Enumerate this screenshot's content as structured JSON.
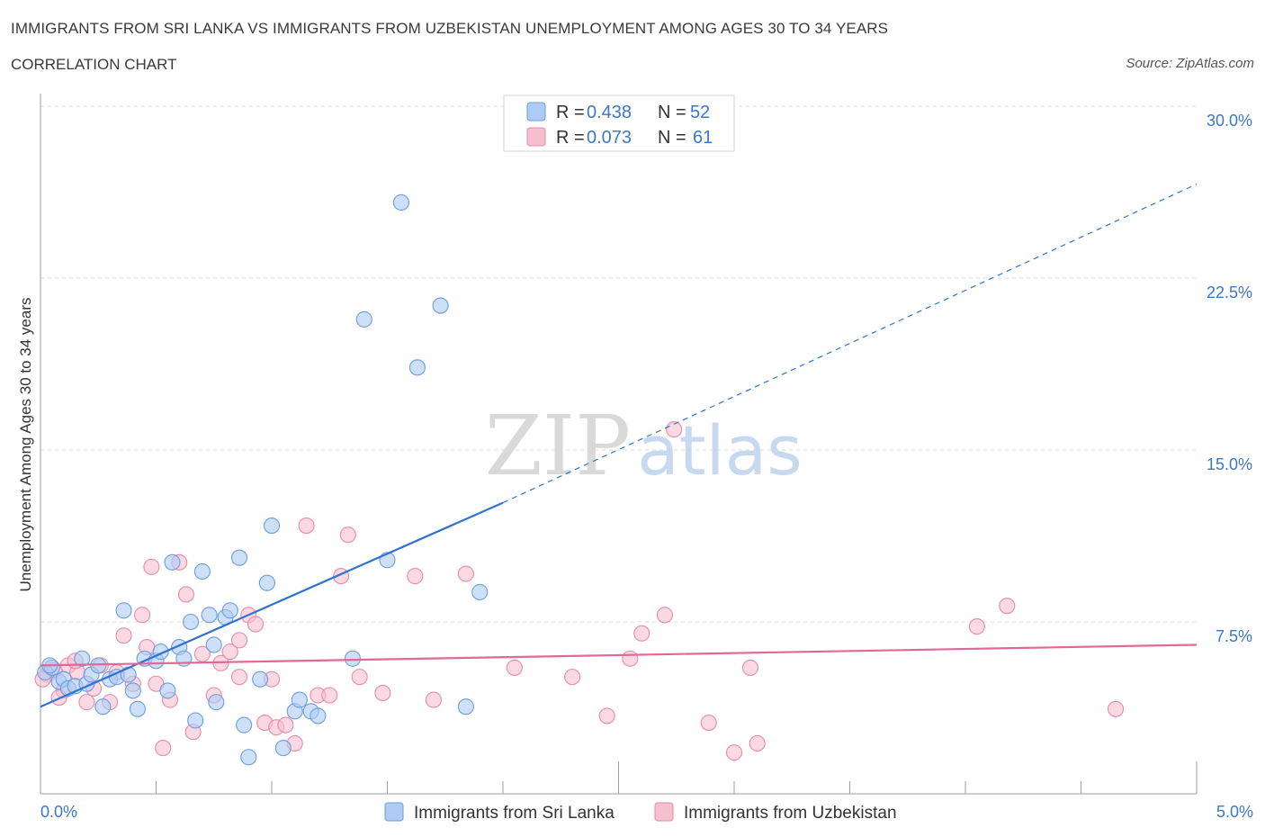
{
  "header": {
    "title": "IMMIGRANTS FROM SRI LANKA VS IMMIGRANTS FROM UZBEKISTAN UNEMPLOYMENT AMONG AGES 30 TO 34 YEARS",
    "subtitle": "CORRELATION CHART",
    "source": "Source: ZipAtlas.com"
  },
  "watermark": {
    "zip": "ZIP",
    "atlas": "atlas"
  },
  "colors": {
    "blue_fill": "#aeccf3",
    "blue_stroke": "#6a9ee0",
    "blue_line": "#2f74d0",
    "pink_fill": "#f6bfd0",
    "pink_stroke": "#e88aa8",
    "pink_line": "#e0699a",
    "axis_text_blue": "#3b78c8",
    "grid": "#d9d9d9"
  },
  "chart_data": {
    "type": "scatter",
    "title": "IMMIGRANTS FROM SRI LANKA VS IMMIGRANTS FROM UZBEKISTAN UNEMPLOYMENT AMONG AGES 30 TO 34 YEARS",
    "xlabel": "",
    "ylabel": "Unemployment Among Ages 30 to 34 years",
    "xlim": [
      0,
      5
    ],
    "ylim": [
      0,
      30
    ],
    "x_tick_labels": [
      "0.0%",
      "5.0%"
    ],
    "y_ticks": [
      7.5,
      15,
      22.5,
      30
    ],
    "y_tick_labels": [
      "7.5%",
      "15.0%",
      "22.5%",
      "30.0%"
    ],
    "grid": true,
    "legend_position": "top-center",
    "series": [
      {
        "name": "Immigrants from Sri Lanka",
        "color": "blue",
        "R": "0.438",
        "N": "52",
        "trend": {
          "x0": 0,
          "y0": 3.8,
          "x1": 2.0,
          "y1": 12.7,
          "dash_to_x": 5.0,
          "dash_to_y": 26.6
        },
        "points": [
          [
            0.02,
            5.3
          ],
          [
            0.05,
            5.5
          ],
          [
            0.08,
            4.9
          ],
          [
            0.1,
            5.0
          ],
          [
            0.12,
            4.6
          ],
          [
            0.15,
            4.7
          ],
          [
            0.18,
            5.9
          ],
          [
            0.2,
            4.8
          ],
          [
            0.22,
            5.2
          ],
          [
            0.25,
            5.6
          ],
          [
            0.27,
            3.8
          ],
          [
            0.3,
            5.0
          ],
          [
            0.33,
            5.1
          ],
          [
            0.36,
            8.0
          ],
          [
            0.38,
            5.2
          ],
          [
            0.4,
            4.5
          ],
          [
            0.42,
            3.7
          ],
          [
            0.45,
            5.9
          ],
          [
            0.5,
            5.8
          ],
          [
            0.52,
            6.2
          ],
          [
            0.55,
            4.5
          ],
          [
            0.57,
            10.1
          ],
          [
            0.6,
            6.4
          ],
          [
            0.62,
            5.9
          ],
          [
            0.65,
            7.5
          ],
          [
            0.67,
            3.2
          ],
          [
            0.7,
            9.7
          ],
          [
            0.73,
            7.8
          ],
          [
            0.75,
            6.5
          ],
          [
            0.76,
            4.0
          ],
          [
            0.8,
            7.7
          ],
          [
            0.82,
            8.0
          ],
          [
            0.86,
            10.3
          ],
          [
            0.88,
            3.0
          ],
          [
            0.9,
            1.6
          ],
          [
            0.95,
            5.0
          ],
          [
            0.98,
            9.2
          ],
          [
            1.0,
            11.7
          ],
          [
            1.05,
            2.0
          ],
          [
            1.1,
            3.6
          ],
          [
            1.12,
            4.1
          ],
          [
            1.17,
            3.6
          ],
          [
            1.2,
            3.4
          ],
          [
            1.35,
            5.9
          ],
          [
            1.4,
            20.7
          ],
          [
            1.5,
            10.2
          ],
          [
            1.56,
            25.8
          ],
          [
            1.63,
            18.6
          ],
          [
            1.73,
            21.3
          ],
          [
            1.84,
            3.8
          ],
          [
            1.9,
            8.8
          ],
          [
            0.04,
            5.6
          ]
        ]
      },
      {
        "name": "Immigrants from Uzbekistan",
        "color": "pink",
        "R": "0.073",
        "N": "61",
        "trend": {
          "x0": 0,
          "y0": 5.6,
          "x1": 5.0,
          "y1": 6.5
        },
        "points": [
          [
            0.03,
            5.2
          ],
          [
            0.06,
            5.4
          ],
          [
            0.1,
            4.5
          ],
          [
            0.12,
            5.6
          ],
          [
            0.16,
            5.3
          ],
          [
            0.2,
            4.0
          ],
          [
            0.23,
            4.6
          ],
          [
            0.26,
            5.6
          ],
          [
            0.3,
            4.0
          ],
          [
            0.33,
            5.3
          ],
          [
            0.36,
            6.9
          ],
          [
            0.4,
            4.8
          ],
          [
            0.44,
            7.8
          ],
          [
            0.46,
            6.4
          ],
          [
            0.48,
            9.9
          ],
          [
            0.5,
            4.8
          ],
          [
            0.53,
            2.0
          ],
          [
            0.56,
            4.1
          ],
          [
            0.6,
            10.1
          ],
          [
            0.63,
            8.7
          ],
          [
            0.66,
            2.7
          ],
          [
            0.7,
            6.1
          ],
          [
            0.75,
            4.3
          ],
          [
            0.78,
            5.7
          ],
          [
            0.82,
            6.2
          ],
          [
            0.86,
            5.1
          ],
          [
            0.86,
            6.7
          ],
          [
            0.9,
            7.8
          ],
          [
            0.93,
            7.4
          ],
          [
            0.97,
            3.1
          ],
          [
            1.0,
            5.0
          ],
          [
            1.02,
            2.9
          ],
          [
            1.06,
            3.0
          ],
          [
            1.1,
            2.2
          ],
          [
            1.15,
            11.7
          ],
          [
            1.2,
            4.3
          ],
          [
            1.25,
            4.3
          ],
          [
            1.3,
            9.5
          ],
          [
            1.33,
            11.3
          ],
          [
            1.38,
            5.1
          ],
          [
            1.48,
            4.4
          ],
          [
            1.62,
            9.5
          ],
          [
            1.7,
            4.1
          ],
          [
            1.84,
            9.6
          ],
          [
            2.05,
            5.5
          ],
          [
            2.3,
            5.1
          ],
          [
            2.45,
            3.4
          ],
          [
            2.55,
            5.9
          ],
          [
            2.6,
            7.0
          ],
          [
            2.7,
            7.8
          ],
          [
            2.74,
            15.9
          ],
          [
            2.89,
            3.1
          ],
          [
            3.0,
            1.8
          ],
          [
            3.07,
            5.5
          ],
          [
            3.1,
            2.2
          ],
          [
            4.05,
            7.3
          ],
          [
            4.18,
            8.2
          ],
          [
            4.65,
            3.7
          ],
          [
            0.01,
            5.0
          ],
          [
            0.08,
            4.2
          ],
          [
            0.15,
            5.8
          ]
        ]
      }
    ]
  }
}
